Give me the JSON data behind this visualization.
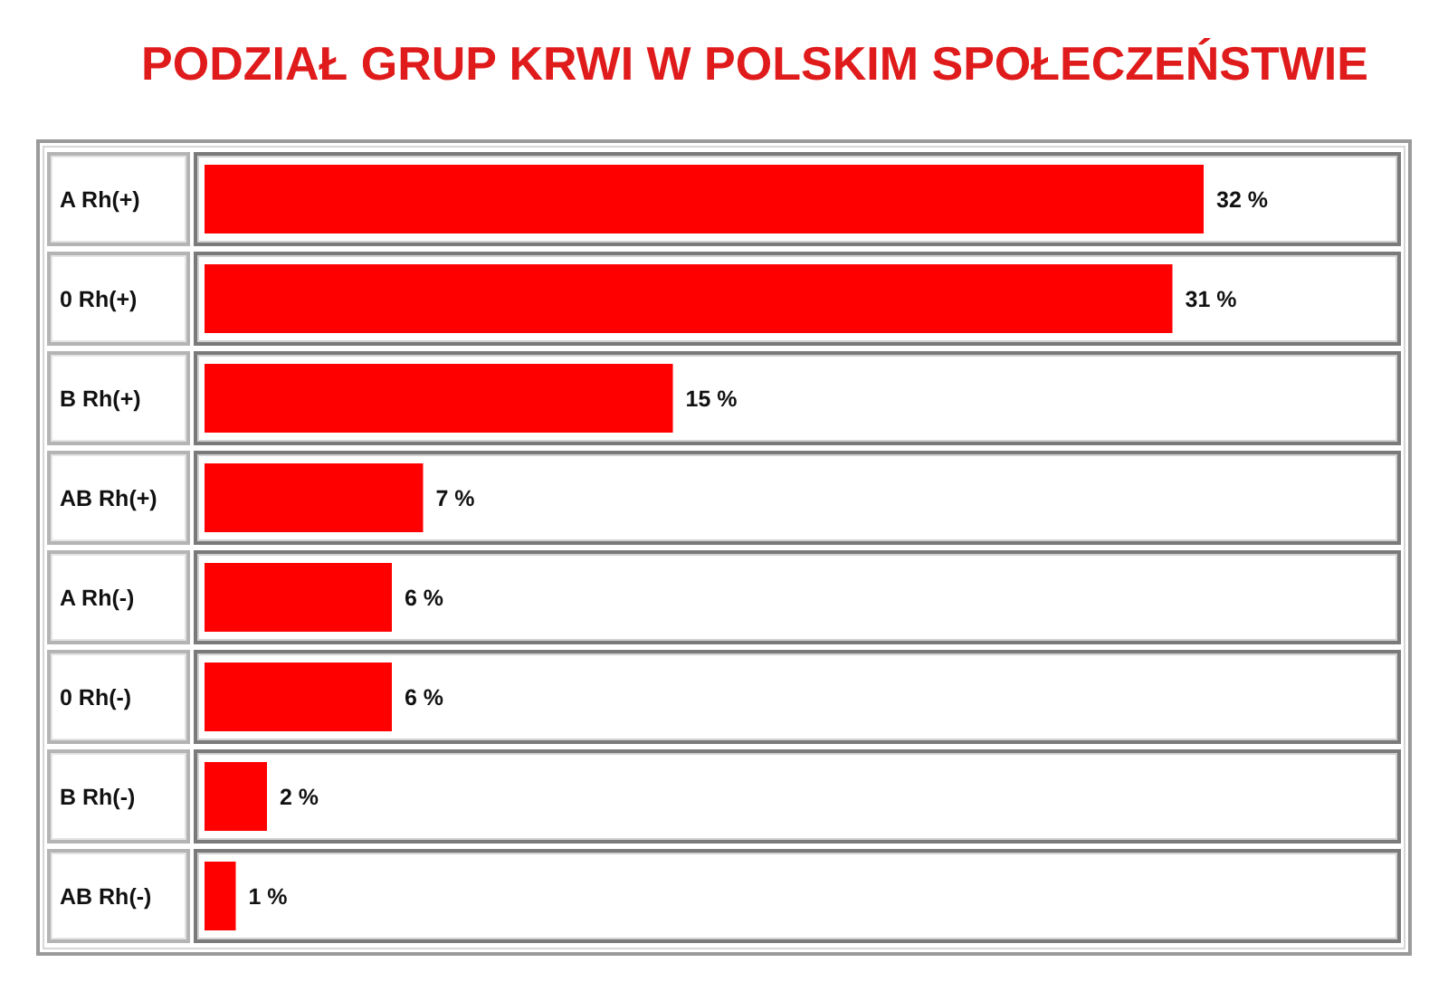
{
  "chart_data": {
    "type": "bar",
    "orientation": "horizontal",
    "title": "PODZIAŁ GRUP KRWI W POLSKIM SPOŁECZEŃSTWIE",
    "categories": [
      "A Rh(+)",
      "0 Rh(+)",
      "B Rh(+)",
      "AB Rh(+)",
      "A Rh(-)",
      "0 Rh(-)",
      "B Rh(-)",
      "AB Rh(-)"
    ],
    "values": [
      32,
      31,
      15,
      7,
      6,
      6,
      2,
      1
    ],
    "value_labels": [
      "32 %",
      "31 %",
      "15 %",
      "7 %",
      "6 %",
      "6 %",
      "2 %",
      "1 %"
    ],
    "color": "#ff0000",
    "tick_labels": "y"
  }
}
